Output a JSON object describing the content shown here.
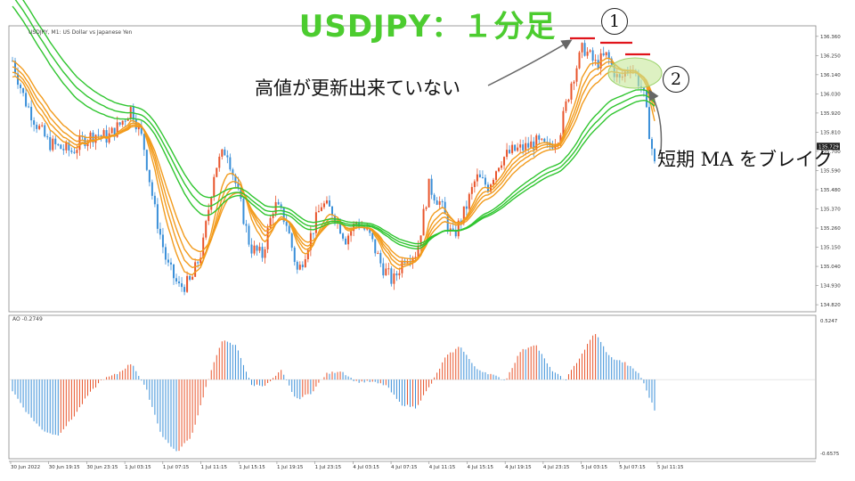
{
  "title": "USDJPY：１分足",
  "symbol_label": "USDJPY, M1:  US Dollar vs Japanese Yen",
  "indicator_label": "AO -0.2749",
  "annotations": {
    "no_new_high": "高値が更新出来ていない",
    "short_ma_break": "短期 MA をブレイク",
    "marker1": "1",
    "marker2": "2"
  },
  "colors": {
    "bull": "#e8542b",
    "bear": "#3a8fd8",
    "short_ma": "#f29b1d",
    "long_ma": "#2fc52f",
    "title": "#4ccc2f",
    "resistance": "#e0141b",
    "highlight": "#c7e89a"
  },
  "chart_data": [
    {
      "type": "line",
      "title": "USDJPY, M1",
      "ylabel": "",
      "ylim": [
        134.8,
        136.4
      ],
      "y_ticks": [
        "136.360",
        "136.250",
        "136.140",
        "136.030",
        "135.920",
        "135.810",
        "135.700",
        "135.590",
        "135.480",
        "135.370",
        "135.260",
        "135.150",
        "135.040",
        "134.930",
        "134.820"
      ],
      "x_ticks": [
        "30 Jun 2022",
        "30 Jun 19:15",
        "30 Jun 23:15",
        "1 Jul 03:15",
        "1 Jul 07:15",
        "1 Jul 11:15",
        "1 Jul 15:15",
        "1 Jul 19:15",
        "1 Jul 23:15",
        "4 Jul 03:15",
        "4 Jul 07:15",
        "4 Jul 11:15",
        "4 Jul 15:15",
        "4 Jul 19:15",
        "4 Jul 23:15",
        "5 Jul 03:15",
        "5 Jul 07:15",
        "5 Jul 11:15"
      ],
      "current_price": "135.729",
      "price_path": [
        136.22,
        136.0,
        135.86,
        135.75,
        135.72,
        135.7,
        135.77,
        135.8,
        135.78,
        135.85,
        135.95,
        135.75,
        135.35,
        135.05,
        134.92,
        134.95,
        135.15,
        135.6,
        135.72,
        135.45,
        135.15,
        135.1,
        135.4,
        135.3,
        135.0,
        135.2,
        135.4,
        135.35,
        135.2,
        135.3,
        135.22,
        135.05,
        134.95,
        135.1,
        135.12,
        135.5,
        135.4,
        135.2,
        135.35,
        135.55,
        135.5,
        135.65,
        135.7,
        135.72,
        135.75,
        135.72,
        135.8,
        136.1,
        136.3,
        136.2,
        136.25,
        136.1,
        136.2,
        136.05,
        135.62
      ]
    },
    {
      "type": "bar",
      "title": "AO",
      "ylim": [
        -0.6575,
        0.5247
      ],
      "y_ticks": [
        "0.5247",
        "-0.6575"
      ],
      "ao_path": [
        -0.1,
        -0.3,
        -0.45,
        -0.5,
        -0.35,
        -0.15,
        0.0,
        0.05,
        0.15,
        -0.1,
        -0.5,
        -0.65,
        -0.5,
        -0.05,
        0.35,
        0.3,
        -0.05,
        -0.05,
        0.08,
        -0.18,
        -0.12,
        0.05,
        0.08,
        -0.02,
        -0.02,
        -0.05,
        -0.22,
        -0.25,
        -0.05,
        0.2,
        0.3,
        0.1,
        0.05,
        -0.01,
        0.25,
        0.32,
        0.1,
        -0.01,
        0.2,
        0.42,
        0.2,
        0.15,
        0.05,
        -0.27
      ]
    }
  ]
}
